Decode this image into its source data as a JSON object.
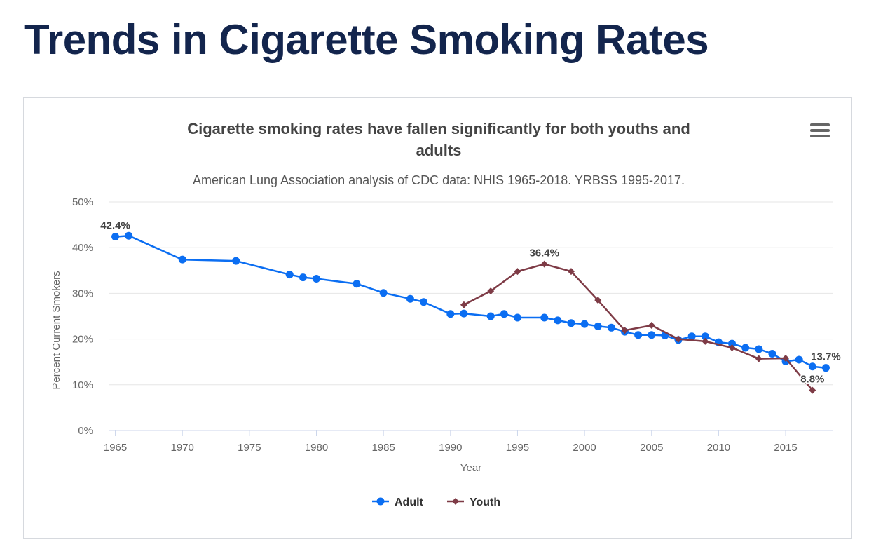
{
  "page": {
    "title": "Trends in Cigarette Smoking Rates"
  },
  "chart_menu": {
    "icon": "hamburger-menu-icon"
  },
  "chart_data": {
    "type": "line",
    "title_lines": [
      "Cigarette smoking rates have fallen significantly for both youths and",
      "adults"
    ],
    "subtitle": "American Lung Association analysis of CDC data: NHIS 1965-2018. YRBSS 1995-2017.",
    "xlabel": "Year",
    "ylabel": "Percent Current Smokers",
    "xlim": [
      1964.5,
      2018.5
    ],
    "ylim": [
      0,
      50
    ],
    "x_ticks": [
      1965,
      1970,
      1975,
      1980,
      1985,
      1990,
      1995,
      2000,
      2005,
      2010,
      2015
    ],
    "y_ticks": [
      {
        "value": 0,
        "label": "0%"
      },
      {
        "value": 10,
        "label": "10%"
      },
      {
        "value": 20,
        "label": "20%"
      },
      {
        "value": 30,
        "label": "30%"
      },
      {
        "value": 40,
        "label": "40%"
      },
      {
        "value": 50,
        "label": "50%"
      }
    ],
    "grid": true,
    "legend_position": "bottom-center",
    "series": [
      {
        "name": "Adult",
        "color": "#0b6ef2",
        "marker": "circle",
        "points": [
          [
            1965,
            42.4
          ],
          [
            1966,
            42.6
          ],
          [
            1970,
            37.4
          ],
          [
            1974,
            37.1
          ],
          [
            1978,
            34.1
          ],
          [
            1979,
            33.5
          ],
          [
            1980,
            33.2
          ],
          [
            1983,
            32.1
          ],
          [
            1985,
            30.1
          ],
          [
            1987,
            28.8
          ],
          [
            1988,
            28.1
          ],
          [
            1990,
            25.5
          ],
          [
            1991,
            25.6
          ],
          [
            1993,
            25.0
          ],
          [
            1994,
            25.5
          ],
          [
            1995,
            24.7
          ],
          [
            1997,
            24.7
          ],
          [
            1998,
            24.1
          ],
          [
            1999,
            23.5
          ],
          [
            2000,
            23.3
          ],
          [
            2001,
            22.8
          ],
          [
            2002,
            22.5
          ],
          [
            2003,
            21.6
          ],
          [
            2004,
            20.9
          ],
          [
            2005,
            20.9
          ],
          [
            2006,
            20.8
          ],
          [
            2007,
            19.8
          ],
          [
            2008,
            20.6
          ],
          [
            2009,
            20.6
          ],
          [
            2010,
            19.3
          ],
          [
            2011,
            19.0
          ],
          [
            2012,
            18.1
          ],
          [
            2013,
            17.8
          ],
          [
            2014,
            16.8
          ],
          [
            2015,
            15.1
          ],
          [
            2016,
            15.5
          ],
          [
            2017,
            14.0
          ],
          [
            2018,
            13.7
          ]
        ],
        "data_labels": [
          {
            "x": 1965,
            "text": "42.4%"
          },
          {
            "x": 2018,
            "text": "13.7%"
          }
        ]
      },
      {
        "name": "Youth",
        "color": "#7e3b46",
        "marker": "diamond",
        "points": [
          [
            1991,
            27.5
          ],
          [
            1993,
            30.5
          ],
          [
            1995,
            34.8
          ],
          [
            1997,
            36.4
          ],
          [
            1999,
            34.8
          ],
          [
            2001,
            28.5
          ],
          [
            2003,
            21.9
          ],
          [
            2005,
            23.0
          ],
          [
            2007,
            20.0
          ],
          [
            2009,
            19.5
          ],
          [
            2011,
            18.1
          ],
          [
            2013,
            15.7
          ],
          [
            2015,
            15.8
          ],
          [
            2017,
            8.8
          ]
        ],
        "data_labels": [
          {
            "x": 1997,
            "text": "36.4%"
          },
          {
            "x": 2017,
            "text": "8.8%"
          }
        ]
      }
    ]
  }
}
